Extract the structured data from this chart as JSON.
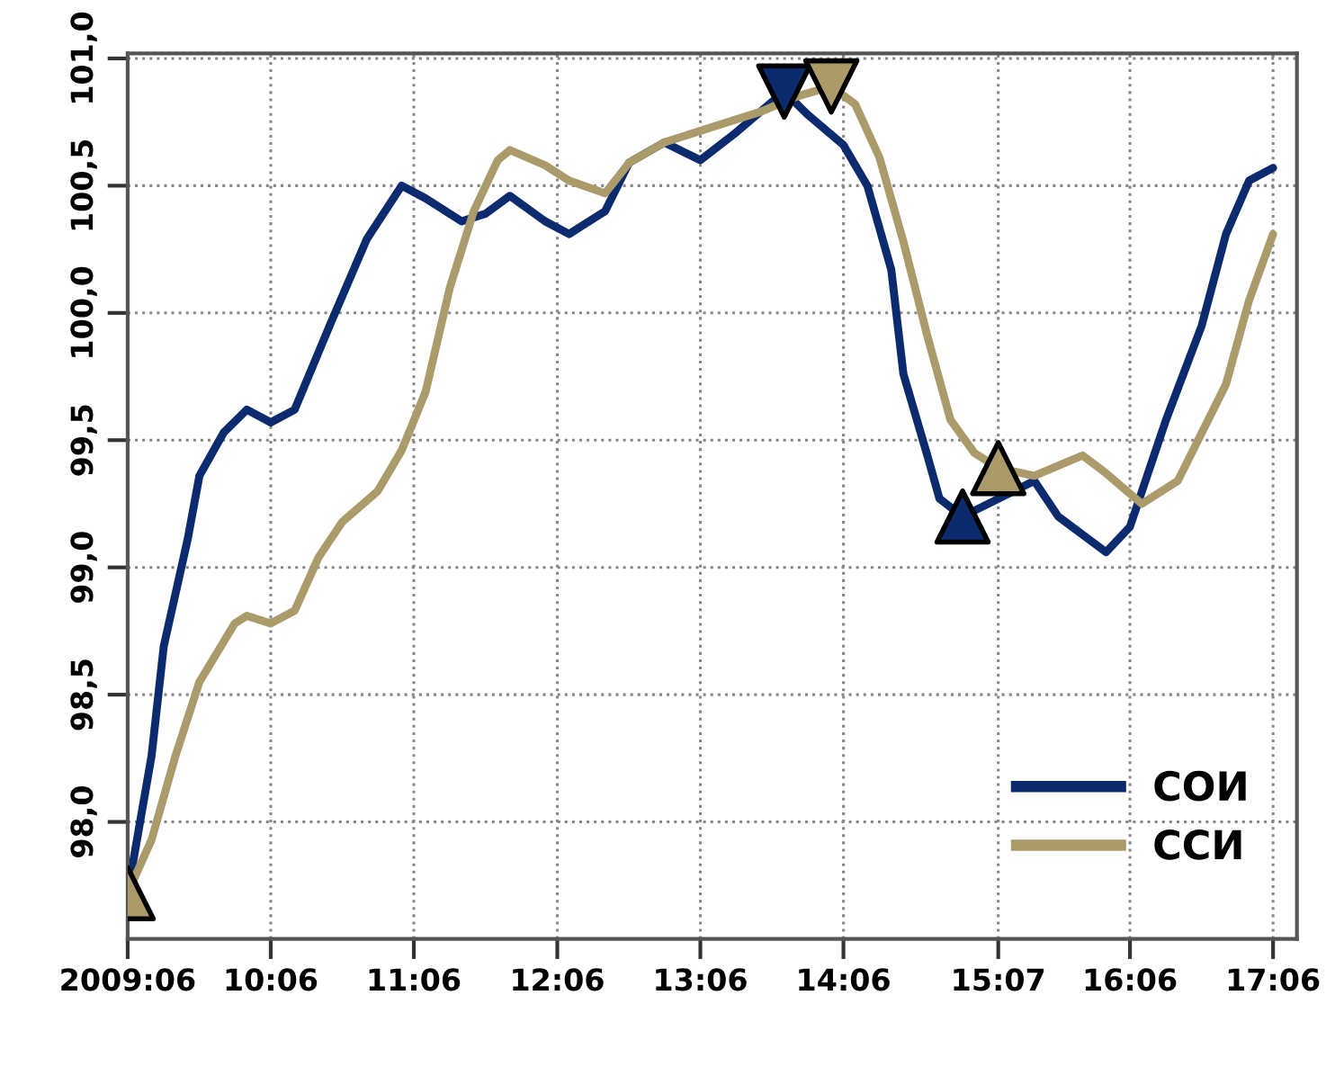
{
  "chart_data": {
    "type": "line",
    "x": [
      "2009-06",
      "2009-08",
      "2009-09",
      "2009-11",
      "2009-12",
      "2010-02",
      "2010-04",
      "2010-06",
      "2010-08",
      "2010-11",
      "2011-02",
      "2011-05",
      "2011-07",
      "2011-10",
      "2011-12",
      "2012-02",
      "2012-05",
      "2012-07",
      "2012-10",
      "2012-12",
      "2013-03",
      "2013-06",
      "2013-09",
      "2014-01",
      "2014-03",
      "2014-06",
      "2014-08",
      "2014-10",
      "2014-11",
      "2015-01",
      "2015-02",
      "2015-04",
      "2015-10",
      "2015-12",
      "2016-04",
      "2016-06",
      "2016-09",
      "2016-12",
      "2017-02",
      "2017-04",
      "2017-06"
    ],
    "series": [
      {
        "name": "СОИ",
        "color": "#0c2a6e",
        "values": [
          97.72,
          98.26,
          98.69,
          99.11,
          99.36,
          99.53,
          99.62,
          99.57,
          99.62,
          99.96,
          100.29,
          100.5,
          100.45,
          100.36,
          100.39,
          100.46,
          100.36,
          100.31,
          100.4,
          100.59,
          100.67,
          100.6,
          100.71,
          100.87,
          100.78,
          100.66,
          100.5,
          100.17,
          99.76,
          99.44,
          99.27,
          99.2,
          99.34,
          99.2,
          99.06,
          99.16,
          99.58,
          99.95,
          100.31,
          100.52,
          100.57
        ]
      },
      {
        "name": "ССИ",
        "color": "#ab9b6b",
        "x": [
          "2009-06",
          "2009-08",
          "2009-10",
          "2009-12",
          "2010-03",
          "2010-04",
          "2010-06",
          "2010-08",
          "2010-10",
          "2010-12",
          "2011-03",
          "2011-05",
          "2011-07",
          "2011-09",
          "2011-11",
          "2012-01",
          "2012-02",
          "2012-05",
          "2012-07",
          "2012-10",
          "2012-12",
          "2013-03",
          "2013-07",
          "2013-11",
          "2014-02",
          "2014-05",
          "2014-07",
          "2014-09",
          "2014-11",
          "2015-01",
          "2015-03",
          "2015-05",
          "2015-07",
          "2015-10",
          "2016-02",
          "2016-04",
          "2016-07",
          "2016-10",
          "2017-02",
          "2017-04",
          "2017-06"
        ],
        "values": [
          97.72,
          97.93,
          98.26,
          98.55,
          98.78,
          98.81,
          98.78,
          98.83,
          99.04,
          99.18,
          99.3,
          99.46,
          99.69,
          100.1,
          100.4,
          100.6,
          100.64,
          100.58,
          100.52,
          100.47,
          100.59,
          100.67,
          100.73,
          100.79,
          100.85,
          100.89,
          100.82,
          100.61,
          100.28,
          99.91,
          99.58,
          99.45,
          99.39,
          99.36,
          99.44,
          99.37,
          99.25,
          99.34,
          99.72,
          100.05,
          100.31
        ]
      },
      {
        "type": "scatter",
        "color": "#0c2a6e",
        "marker": "triangle-down",
        "x": [
          "2014-01"
        ],
        "values": [
          100.87
        ]
      },
      {
        "type": "scatter",
        "color": "#0c2a6e",
        "marker": "triangle",
        "x": [
          "2015-04"
        ],
        "values": [
          99.2
        ]
      },
      {
        "type": "scatter",
        "color": "#ab9b6b",
        "marker": "triangle",
        "x": [
          "2009-06",
          "2015-07"
        ],
        "values": [
          97.72,
          99.39
        ]
      },
      {
        "type": "scatter",
        "color": "#ab9b6b",
        "marker": "triangle-down",
        "x": [
          "2014-05"
        ],
        "values": [
          100.89
        ]
      }
    ],
    "xlim": [
      "2009-06",
      "2017-08"
    ],
    "xticks": [
      {
        "value": "2009-06",
        "label": "2009:06"
      },
      {
        "value": "2010-06",
        "label": "10:06"
      },
      {
        "value": "2011-06",
        "label": "11:06"
      },
      {
        "value": "2012-06",
        "label": "12:06"
      },
      {
        "value": "2013-06",
        "label": "13:06"
      },
      {
        "value": "2014-06",
        "label": "14:06"
      },
      {
        "value": "2015-07",
        "label": "15:07"
      },
      {
        "value": "2016-06",
        "label": "16:06"
      },
      {
        "value": "2017-06",
        "label": "17:06"
      }
    ],
    "ylim": [
      97.54,
      101.02
    ],
    "yticks": [
      {
        "value": 98.0,
        "label": "98,0"
      },
      {
        "value": 98.5,
        "label": "98,5"
      },
      {
        "value": 99.0,
        "label": "99,0"
      },
      {
        "value": 99.5,
        "label": "99,5"
      },
      {
        "value": 100.0,
        "label": "100,0"
      },
      {
        "value": 100.5,
        "label": "100,5"
      },
      {
        "value": 101.0,
        "label": "101,0"
      }
    ],
    "grid": true,
    "legend": "bottom right",
    "line_style": "solid"
  }
}
